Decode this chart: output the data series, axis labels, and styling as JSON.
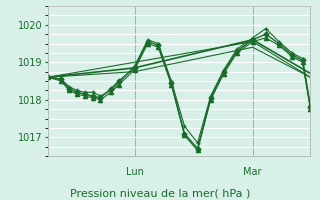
{
  "bg_color": "#d8f0e8",
  "grid_color": "#ffffff",
  "line_color": "#1a6b2a",
  "xlabel": "Pression niveau de la mer( hPa )",
  "ylim": [
    1016.5,
    1020.5
  ],
  "yticks": [
    1017,
    1018,
    1019,
    1020
  ],
  "xlabel_fontsize": 8,
  "tick_fontsize": 7,
  "day_labels": [
    "Lun",
    "Mar"
  ],
  "day_positions": [
    0.33,
    0.78
  ],
  "series": [
    {
      "x": [
        0.0,
        0.05,
        0.08,
        0.11,
        0.14,
        0.17,
        0.2,
        0.24,
        0.27,
        0.33,
        0.38,
        0.42,
        0.47,
        0.52,
        0.57,
        0.62,
        0.67,
        0.72,
        0.78,
        0.83,
        0.88,
        0.93,
        0.97,
        1.0
      ],
      "y": [
        1018.6,
        1018.55,
        1018.3,
        1018.2,
        1018.15,
        1018.1,
        1018.05,
        1018.3,
        1018.5,
        1018.85,
        1019.55,
        1019.45,
        1018.45,
        1017.1,
        1016.7,
        1018.05,
        1018.75,
        1019.3,
        1019.6,
        1019.75,
        1019.5,
        1019.2,
        1019.05,
        1017.8
      ],
      "marker": "D",
      "markersize": 2.5,
      "linewidth": 1.0
    },
    {
      "x": [
        0.0,
        0.05,
        0.08,
        0.11,
        0.14,
        0.17,
        0.2,
        0.24,
        0.27,
        0.33,
        0.38,
        0.42,
        0.47,
        0.52,
        0.57,
        0.62,
        0.67,
        0.72,
        0.78,
        0.83,
        0.88,
        0.93,
        0.97,
        1.0
      ],
      "y": [
        1018.6,
        1018.55,
        1018.35,
        1018.25,
        1018.2,
        1018.2,
        1018.1,
        1018.25,
        1018.45,
        1018.9,
        1019.6,
        1019.5,
        1018.5,
        1017.3,
        1016.85,
        1018.1,
        1018.8,
        1019.35,
        1019.65,
        1019.9,
        1019.55,
        1019.25,
        1019.1,
        1017.85
      ],
      "marker": "+",
      "markersize": 3.5,
      "linewidth": 0.8
    },
    {
      "x": [
        0.0,
        0.05,
        0.08,
        0.11,
        0.14,
        0.17,
        0.2,
        0.24,
        0.27,
        0.33,
        0.38,
        0.42,
        0.47,
        0.52,
        0.57,
        0.62,
        0.67,
        0.72,
        0.78,
        0.83,
        0.88,
        0.93,
        0.97,
        1.0
      ],
      "y": [
        1018.6,
        1018.5,
        1018.25,
        1018.15,
        1018.1,
        1018.05,
        1018.0,
        1018.2,
        1018.4,
        1018.8,
        1019.5,
        1019.4,
        1018.4,
        1017.05,
        1016.65,
        1018.0,
        1018.7,
        1019.25,
        1019.55,
        1019.65,
        1019.45,
        1019.15,
        1019.0,
        1017.75
      ],
      "marker": "^",
      "markersize": 3.0,
      "linewidth": 0.8
    },
    {
      "x": [
        0.0,
        0.33,
        0.78,
        1.0
      ],
      "y": [
        1018.6,
        1018.85,
        1019.6,
        1018.7
      ],
      "marker": null,
      "markersize": 0,
      "linewidth": 1.2
    },
    {
      "x": [
        0.0,
        0.33,
        0.78,
        1.0
      ],
      "y": [
        1018.6,
        1019.0,
        1019.55,
        1018.6
      ],
      "marker": null,
      "markersize": 0,
      "linewidth": 0.8
    },
    {
      "x": [
        0.0,
        0.33,
        0.78,
        1.0
      ],
      "y": [
        1018.6,
        1018.75,
        1019.4,
        1018.6
      ],
      "marker": null,
      "markersize": 0,
      "linewidth": 0.8
    }
  ]
}
